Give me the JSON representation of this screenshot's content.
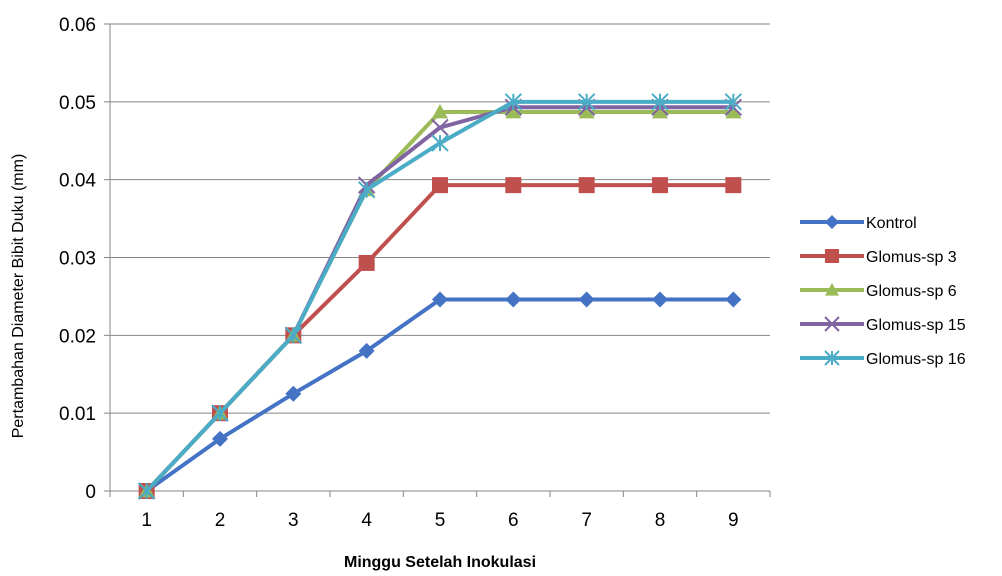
{
  "chart_data": {
    "type": "line",
    "title": "",
    "xlabel": "Minggu Setelah Inokulasi",
    "ylabel": "Pertambahan Diameter Bibit Duku (mm)",
    "categories": [
      "1",
      "2",
      "3",
      "4",
      "5",
      "6",
      "7",
      "8",
      "9"
    ],
    "ylim": [
      0,
      0.06
    ],
    "yticks": [
      "0",
      "0.01",
      "0.02",
      "0.03",
      "0.04",
      "0.05",
      "0.06"
    ],
    "grid": true,
    "legend_position": "right",
    "series": [
      {
        "name": "Kontrol",
        "color": "#4472C4",
        "marker": "diamond",
        "values": [
          0,
          0.0067,
          0.0125,
          0.018,
          0.0246,
          0.0246,
          0.0246,
          0.0246,
          0.0246
        ]
      },
      {
        "name": "Glomus-sp 3",
        "color": "#C0504D",
        "marker": "square",
        "values": [
          0,
          0.01,
          0.02,
          0.0293,
          0.0393,
          0.0393,
          0.0393,
          0.0393,
          0.0393
        ]
      },
      {
        "name": "Glomus-sp 6",
        "color": "#9BBB59",
        "marker": "triangle",
        "values": [
          0,
          0.01,
          0.02,
          0.0387,
          0.0487,
          0.0487,
          0.0487,
          0.0487,
          0.0487
        ]
      },
      {
        "name": "Glomus-sp 15",
        "color": "#8064A2",
        "marker": "x",
        "values": [
          0,
          0.01,
          0.02,
          0.0393,
          0.0467,
          0.0493,
          0.0493,
          0.0493,
          0.0493
        ]
      },
      {
        "name": "Glomus-sp 16",
        "color": "#4BACC6",
        "marker": "star",
        "values": [
          0,
          0.01,
          0.02,
          0.0387,
          0.0447,
          0.05,
          0.05,
          0.05,
          0.05
        ]
      }
    ]
  }
}
